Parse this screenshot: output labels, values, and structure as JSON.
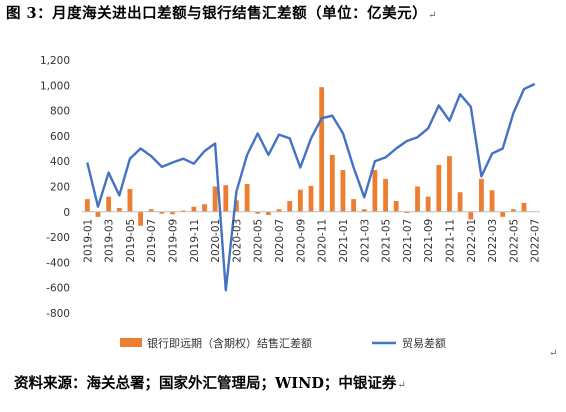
{
  "figure": {
    "title": "图 3：月度海关进出口差额与银行结售汇差额（单位：亿美元）",
    "source": "资料来源：海关总署；国家外汇管理局；WIND；中银证券",
    "return_mark": "↵"
  },
  "chart_data": {
    "type": "bar+line",
    "title": "",
    "xlabel": "",
    "ylabel": "",
    "ylim": [
      -800,
      1200
    ],
    "yticks": [
      -800,
      -600,
      -400,
      -200,
      0,
      200,
      400,
      600,
      800,
      1000,
      1200
    ],
    "ytick_labels": [
      "-800",
      "-600",
      "-400",
      "-200",
      "0",
      "200",
      "400",
      "600",
      "800",
      "1,000",
      "1,200"
    ],
    "grid": false,
    "legend_position": "bottom",
    "x": [
      "2019-01",
      "2019-02",
      "2019-03",
      "2019-04",
      "2019-05",
      "2019-06",
      "2019-07",
      "2019-08",
      "2019-09",
      "2019-10",
      "2019-11",
      "2019-12",
      "2020-01",
      "2020-02",
      "2020-03",
      "2020-04",
      "2020-05",
      "2020-06",
      "2020-07",
      "2020-08",
      "2020-09",
      "2020-10",
      "2020-11",
      "2020-12",
      "2021-01",
      "2021-02",
      "2021-03",
      "2021-04",
      "2021-05",
      "2021-06",
      "2021-07",
      "2021-08",
      "2021-09",
      "2021-10",
      "2021-11",
      "2021-12",
      "2022-01",
      "2022-02",
      "2022-03",
      "2022-04",
      "2022-05",
      "2022-06",
      "2022-07"
    ],
    "x_tick_labels": [
      "2019-01",
      "2019-03",
      "2019-05",
      "2019-07",
      "2019-09",
      "2019-11",
      "2020-01",
      "2020-03",
      "2020-05",
      "2020-07",
      "2020-09",
      "2020-11",
      "2021-01",
      "2021-03",
      "2021-05",
      "2021-07",
      "2021-09",
      "2021-11",
      "2022-01",
      "2022-03",
      "2022-05",
      "2022-07"
    ],
    "series": [
      {
        "name": "银行即远期（含期权）结售汇差额",
        "kind": "bar",
        "color": "#ED7D31",
        "values": [
          100,
          -40,
          120,
          30,
          180,
          -110,
          20,
          -15,
          -20,
          10,
          40,
          60,
          200,
          210,
          90,
          220,
          -15,
          -25,
          20,
          85,
          175,
          205,
          985,
          450,
          330,
          100,
          20,
          330,
          260,
          85,
          -10,
          200,
          120,
          370,
          440,
          155,
          -60,
          260,
          170,
          -40,
          20,
          70,
          0
        ]
      },
      {
        "name": "贸易差额",
        "kind": "line",
        "color": "#4472C4",
        "values": [
          390,
          40,
          310,
          130,
          420,
          500,
          440,
          355,
          390,
          420,
          380,
          480,
          540,
          -620,
          160,
          450,
          620,
          450,
          610,
          580,
          350,
          580,
          740,
          760,
          620,
          350,
          115,
          400,
          430,
          500,
          560,
          590,
          660,
          840,
          720,
          930,
          830,
          280,
          460,
          500,
          780,
          970,
          1010
        ]
      }
    ]
  }
}
